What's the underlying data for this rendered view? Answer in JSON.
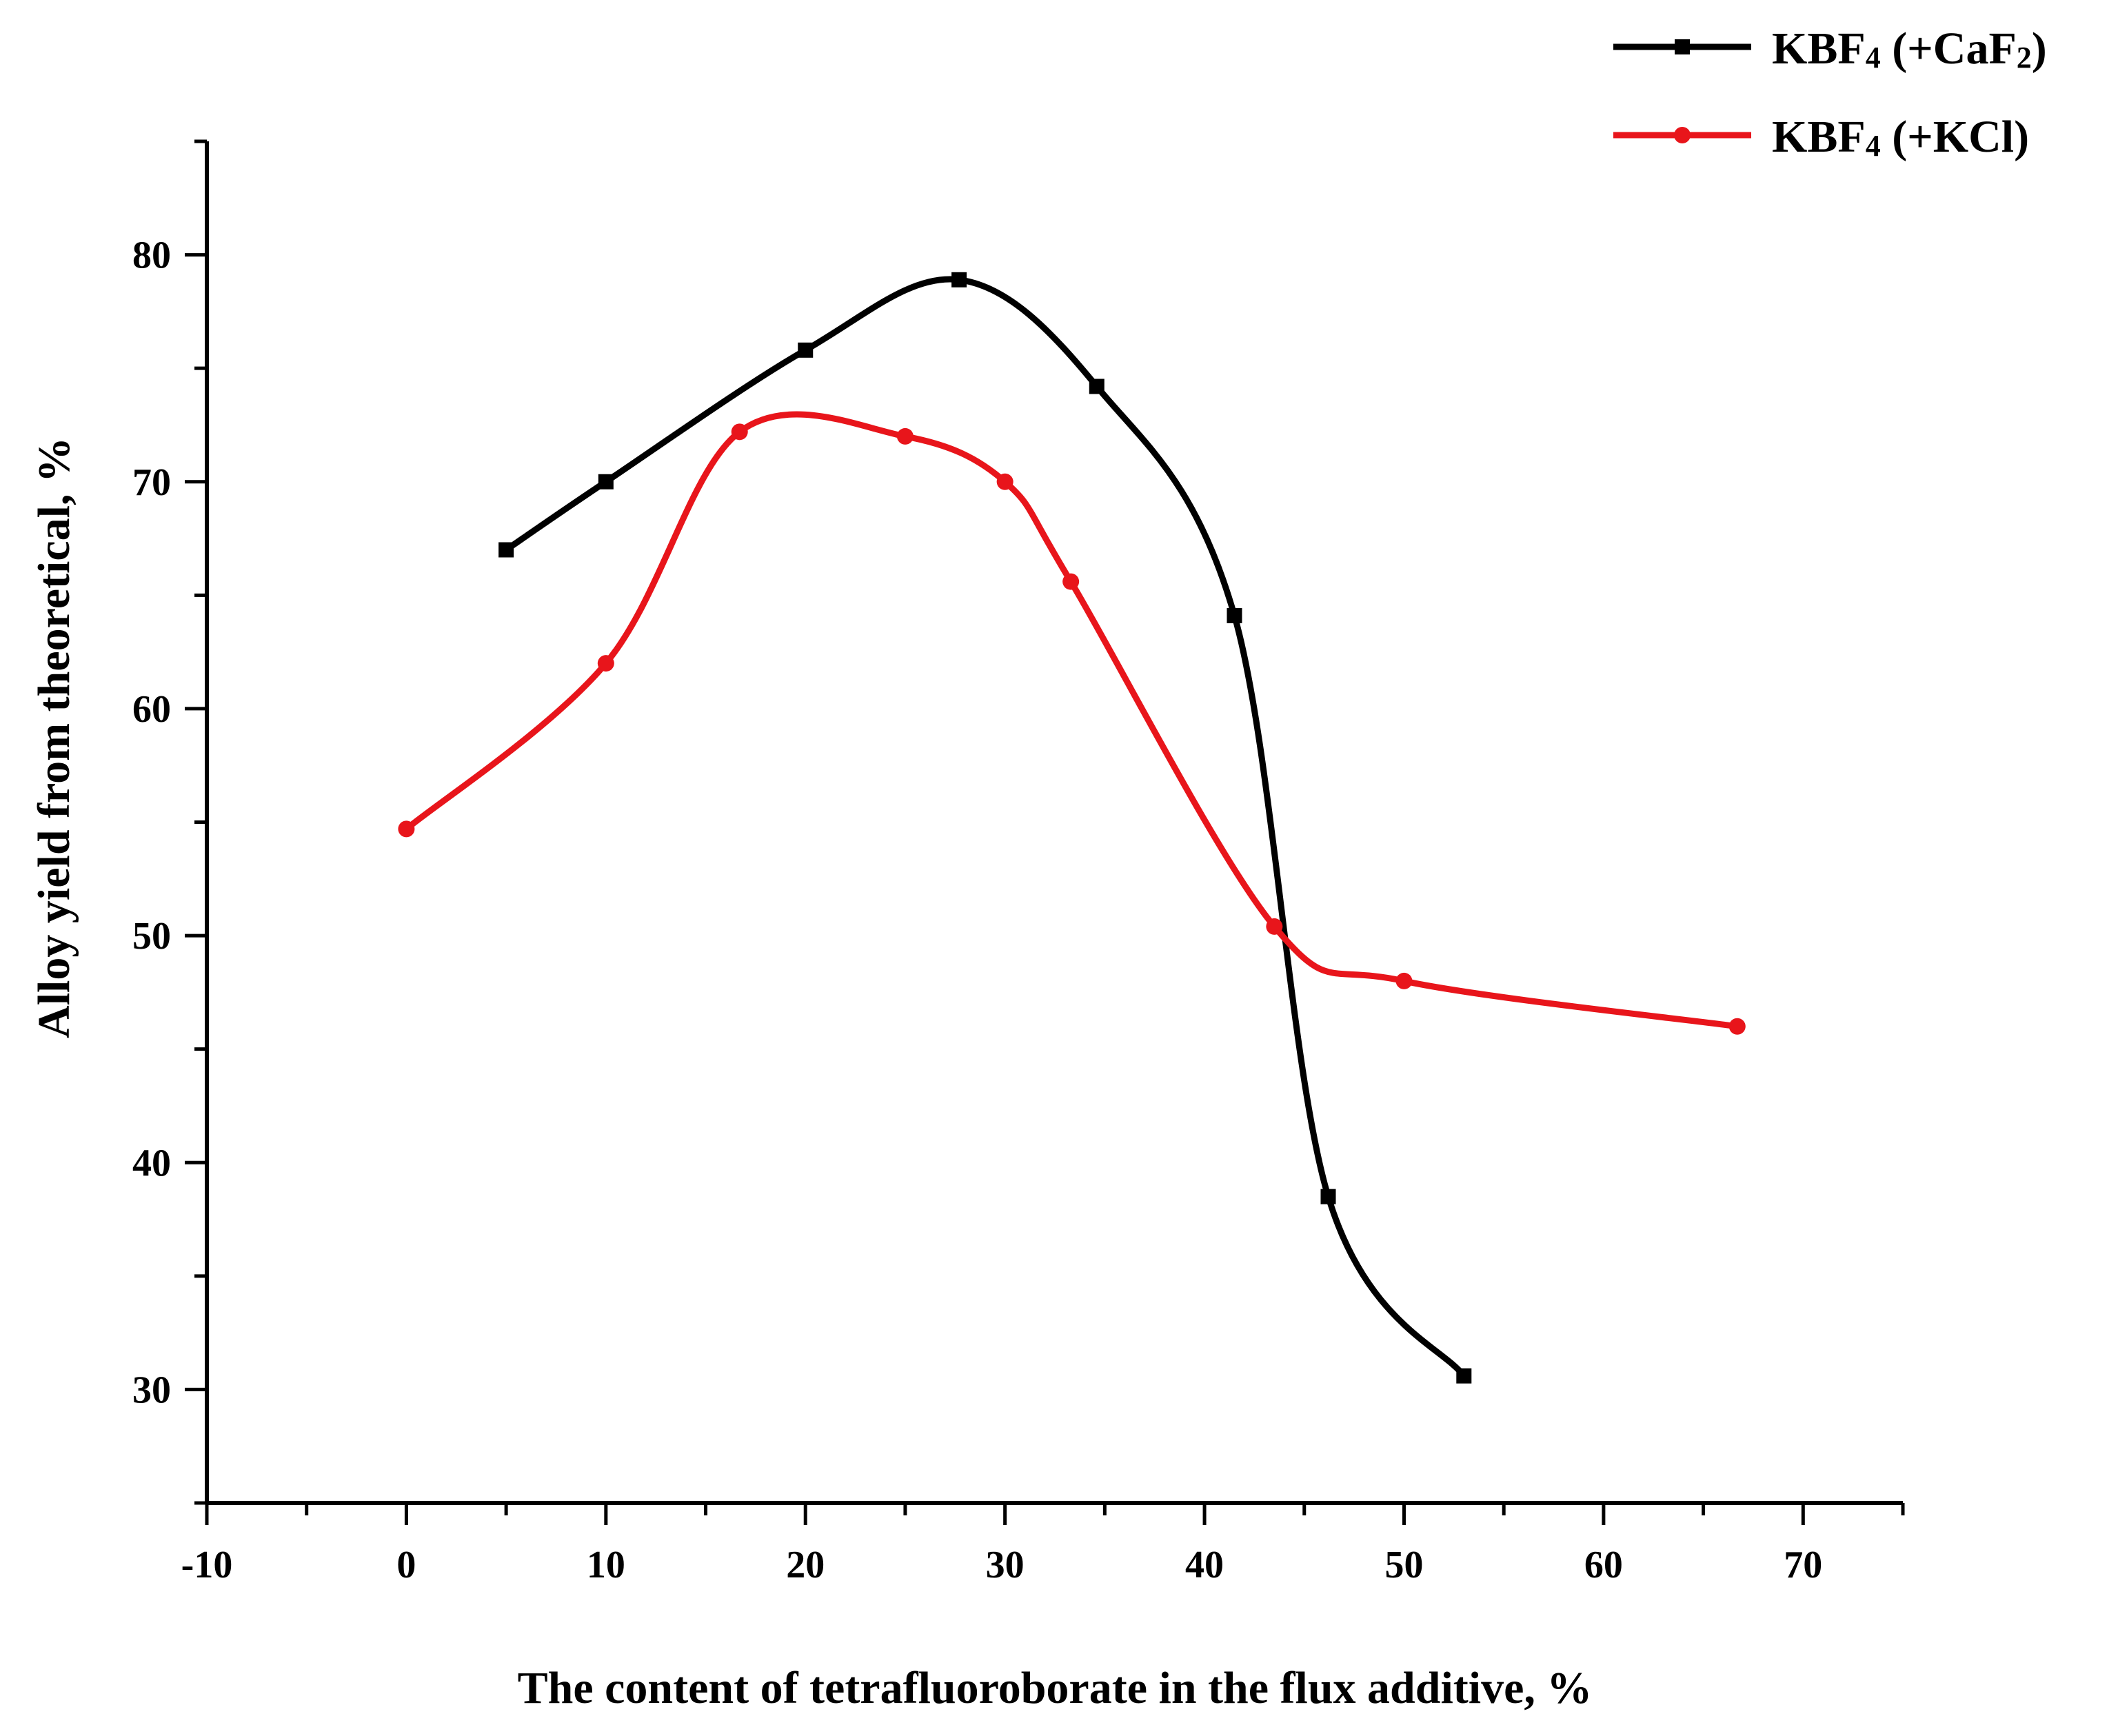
{
  "chart_data": {
    "type": "line",
    "title": "",
    "xlabel": "The content of tetrafluoroborate in the flux additive, %",
    "ylabel": "Alloy yield from theoretical, %",
    "xlim": [
      -10,
      75
    ],
    "ylim": [
      25,
      85
    ],
    "x_ticks": [
      -10,
      0,
      10,
      20,
      30,
      40,
      50,
      60,
      70
    ],
    "x_minor_ticks": [
      -5,
      5,
      15,
      25,
      35,
      45,
      55,
      65,
      75
    ],
    "y_ticks": [
      30,
      40,
      50,
      60,
      70,
      80
    ],
    "y_minor_ticks": [
      25,
      35,
      45,
      55,
      65,
      75,
      85
    ],
    "grid": false,
    "legend_position": "top-right",
    "series": [
      {
        "name": "KBF4 (+CaF2)",
        "legend": {
          "main": "KBF",
          "sub1": "4",
          "mid": " (+CaF",
          "sub2": "2",
          "end": ")"
        },
        "color": "#000000",
        "marker": "square",
        "x": [
          5,
          10,
          20,
          27.7,
          34.6,
          41.5,
          46.2,
          53
        ],
        "y": [
          67,
          70,
          75.8,
          78.9,
          74.2,
          64.1,
          38.5,
          30.6
        ]
      },
      {
        "name": "KBF4 (+KCl)",
        "legend": {
          "main": "KBF",
          "sub1": "4",
          "mid": " (+KCl)",
          "sub2": "",
          "end": ""
        },
        "color": "#e8151b",
        "marker": "circle",
        "x": [
          0,
          10,
          16.7,
          25,
          30,
          33.3,
          43.5,
          50,
          66.7
        ],
        "y": [
          54.7,
          62,
          72.2,
          72,
          70,
          65.6,
          50.4,
          48,
          46
        ]
      }
    ]
  }
}
